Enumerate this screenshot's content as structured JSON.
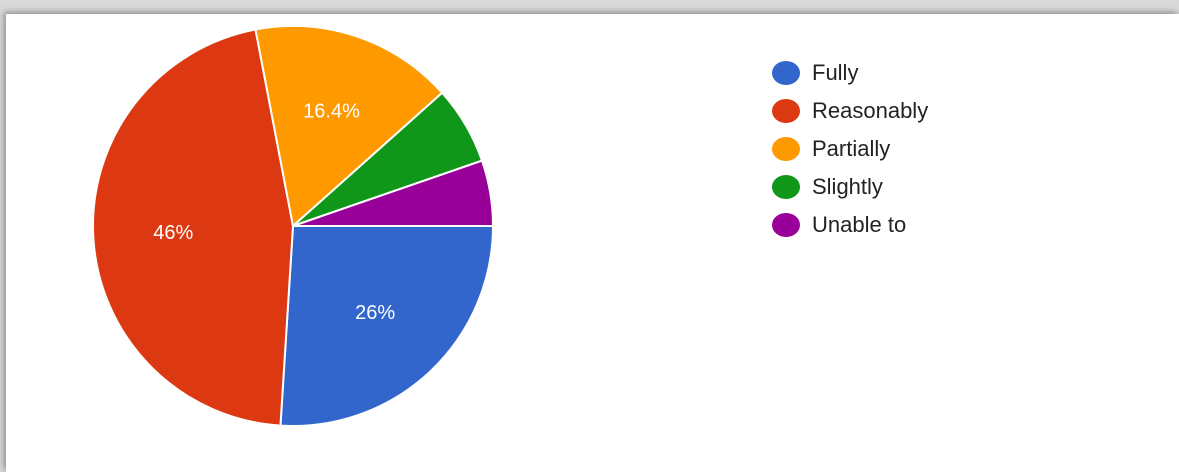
{
  "chart_data": {
    "type": "pie",
    "title": "",
    "legend_position": "top-right",
    "slices": [
      {
        "name": "Fully",
        "value": 26,
        "label": "26%",
        "color": "#3366cc"
      },
      {
        "name": "Reasonably",
        "value": 46,
        "label": "46%",
        "color": "#dc3912"
      },
      {
        "name": "Partially",
        "value": 16.4,
        "label": "16.4%",
        "color": "#ff9900"
      },
      {
        "name": "Slightly",
        "value": 6.3,
        "label": "",
        "color": "#109618"
      },
      {
        "name": "Unable to",
        "value": 5.3,
        "label": "",
        "color": "#990099"
      }
    ]
  }
}
